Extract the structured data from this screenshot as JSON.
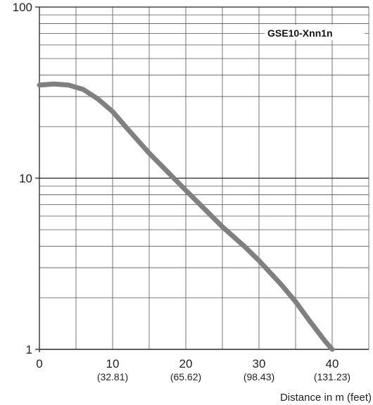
{
  "chart_data": {
    "type": "line",
    "title": "",
    "xlabel": "Distance in m (feet)",
    "ylabel": "",
    "y_scale": "log",
    "xlim": [
      0,
      45
    ],
    "ylim": [
      1,
      100
    ],
    "grid": true,
    "x_ticks": [
      {
        "value": 0,
        "label": "0",
        "sub": ""
      },
      {
        "value": 10,
        "label": "10",
        "sub": "(32.81)"
      },
      {
        "value": 20,
        "label": "20",
        "sub": "(65.62)"
      },
      {
        "value": 30,
        "label": "30",
        "sub": "(98.43)"
      },
      {
        "value": 40,
        "label": "40",
        "sub": "(131.23)"
      }
    ],
    "y_ticks": [
      {
        "value": 1,
        "label": "1"
      },
      {
        "value": 10,
        "label": "10"
      },
      {
        "value": 100,
        "label": "100"
      }
    ],
    "series": [
      {
        "name": "GSE10-Xnn1n",
        "color": "#808080",
        "x": [
          0,
          2,
          4,
          6,
          8,
          10,
          12,
          15,
          20,
          25,
          28,
          30,
          33,
          35,
          37,
          39,
          40
        ],
        "y": [
          35,
          35.5,
          35,
          33,
          29,
          24.5,
          19.5,
          14,
          8.5,
          5.2,
          4.0,
          3.3,
          2.4,
          1.9,
          1.45,
          1.12,
          1.0
        ]
      }
    ]
  }
}
